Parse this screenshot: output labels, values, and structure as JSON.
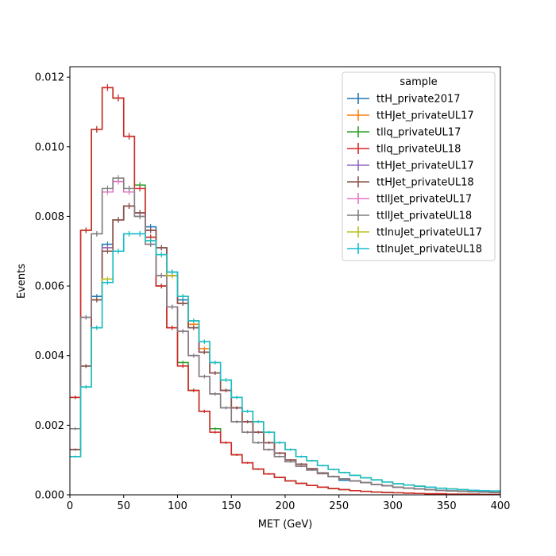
{
  "chart_data": {
    "type": "line",
    "style": "step-histogram-with-errorbars",
    "xlabel": "MET (GeV)",
    "ylabel": "Events",
    "xlim": [
      0,
      400
    ],
    "ylim": [
      0,
      0.0123
    ],
    "xticks": [
      0,
      50,
      100,
      150,
      200,
      250,
      300,
      350,
      400
    ],
    "xtick_labels": [
      "0",
      "50",
      "100",
      "150",
      "200",
      "250",
      "300",
      "350",
      "400"
    ],
    "yticks": [
      0,
      0.002,
      0.004,
      0.006,
      0.008,
      0.01,
      0.012
    ],
    "ytick_labels": [
      "0.000",
      "0.002",
      "0.004",
      "0.006",
      "0.008",
      "0.010",
      "0.012"
    ],
    "grid": false,
    "legend": {
      "title": "sample",
      "placement": "top-right"
    },
    "bin_edges": [
      0,
      10,
      20,
      30,
      40,
      50,
      60,
      70,
      80,
      90,
      100,
      110,
      120,
      130,
      140,
      150,
      160,
      170,
      180,
      190,
      200,
      210,
      220,
      230,
      240,
      250,
      260,
      270,
      280,
      290,
      300,
      310,
      320,
      330,
      340,
      350,
      360,
      370,
      380,
      390,
      400
    ],
    "series": [
      {
        "name": "ttH_private2017",
        "color": "#1f77b4",
        "values": [
          0.0013,
          0.0037,
          0.0057,
          0.0072,
          0.0079,
          0.0083,
          0.0081,
          0.0077,
          0.0071,
          0.0064,
          0.0056,
          0.0048,
          0.0041,
          0.0035,
          0.003,
          0.0025,
          0.0021,
          0.0018,
          0.0015,
          0.0012,
          0.001,
          0.00088,
          0.00075,
          0.00063,
          0.00053,
          0.00042,
          0.0004,
          0.00035,
          0.0003,
          0.00026,
          0.00022,
          0.00019,
          0.00017,
          0.00015,
          0.00013,
          0.00011,
          0.0001,
          9e-05,
          8e-05,
          7e-05
        ]
      },
      {
        "name": "ttHJet_privateUL17",
        "color": "#ff7f0e",
        "values": [
          0.0013,
          0.0037,
          0.0056,
          0.0071,
          0.0079,
          0.0083,
          0.0081,
          0.0076,
          0.0071,
          0.0063,
          0.0055,
          0.0049,
          0.0042,
          0.0035,
          0.003,
          0.0025,
          0.0021,
          0.0018,
          0.0015,
          0.0012,
          0.001,
          0.00088,
          0.00075,
          0.00063,
          0.00053,
          0.00046,
          0.0004,
          0.00035,
          0.0003,
          0.00026,
          0.00022,
          0.00019,
          0.00017,
          0.00015,
          0.00013,
          0.00011,
          0.0001,
          9e-05,
          8e-05,
          7e-05
        ]
      },
      {
        "name": "tllq_privateUL17",
        "color": "#2ca02c",
        "values": [
          0.0028,
          0.0076,
          0.0105,
          0.0117,
          0.0114,
          0.0103,
          0.0089,
          0.0074,
          0.006,
          0.0048,
          0.0038,
          0.003,
          0.0024,
          0.0019,
          0.0015,
          0.00115,
          0.00092,
          0.00074,
          0.0006,
          0.0005,
          0.0004,
          0.00033,
          0.00027,
          0.00022,
          0.00018,
          0.00015,
          0.00012,
          0.0001,
          8e-05,
          7e-05,
          6e-05,
          5e-05,
          4e-05,
          3e-05,
          3e-05,
          2e-05,
          2e-05,
          2e-05,
          1e-05,
          1e-05
        ]
      },
      {
        "name": "tllq_privateUL18",
        "color": "#d62728",
        "values": [
          0.0028,
          0.0076,
          0.0105,
          0.0117,
          0.0114,
          0.0103,
          0.0088,
          0.0074,
          0.006,
          0.0048,
          0.0037,
          0.003,
          0.0024,
          0.0018,
          0.0015,
          0.00115,
          0.00092,
          0.00074,
          0.0006,
          0.0005,
          0.0004,
          0.00033,
          0.00027,
          0.00022,
          0.00018,
          0.00015,
          0.00012,
          0.0001,
          8e-05,
          7e-05,
          6e-05,
          5e-05,
          4e-05,
          3e-05,
          3e-05,
          2e-05,
          2e-05,
          2e-05,
          1e-05,
          1e-05
        ]
      },
      {
        "name": "ttHJet_privateUL17",
        "color": "#9467bd",
        "values": [
          0.0013,
          0.0037,
          0.0056,
          0.0071,
          0.0079,
          0.0083,
          0.0081,
          0.0076,
          0.0071,
          0.0063,
          0.0055,
          0.0048,
          0.0041,
          0.0035,
          0.003,
          0.0025,
          0.0021,
          0.0018,
          0.0015,
          0.0012,
          0.001,
          0.00088,
          0.00075,
          0.00063,
          0.00053,
          0.00046,
          0.0004,
          0.00035,
          0.0003,
          0.00026,
          0.00022,
          0.00019,
          0.00017,
          0.00015,
          0.00013,
          0.00011,
          0.0001,
          9e-05,
          8e-05,
          7e-05
        ]
      },
      {
        "name": "ttHJet_privateUL18",
        "color": "#8c564b",
        "values": [
          0.0013,
          0.0037,
          0.0056,
          0.007,
          0.0079,
          0.0083,
          0.0081,
          0.0076,
          0.0071,
          0.0063,
          0.0055,
          0.0048,
          0.0041,
          0.0035,
          0.003,
          0.0025,
          0.0021,
          0.0018,
          0.0015,
          0.0012,
          0.001,
          0.00088,
          0.00075,
          0.00063,
          0.00053,
          0.00046,
          0.0004,
          0.00035,
          0.0003,
          0.00026,
          0.00022,
          0.00019,
          0.00017,
          0.00015,
          0.00013,
          0.00011,
          0.0001,
          9e-05,
          8e-05,
          7e-05
        ]
      },
      {
        "name": "ttllJet_privateUL17",
        "color": "#e377c2",
        "values": [
          0.0019,
          0.0051,
          0.0075,
          0.0087,
          0.009,
          0.0087,
          0.008,
          0.0072,
          0.0063,
          0.0054,
          0.0047,
          0.004,
          0.0034,
          0.0029,
          0.0025,
          0.0021,
          0.0018,
          0.0015,
          0.0013,
          0.0011,
          0.00095,
          0.00082,
          0.00071,
          0.00061,
          0.00052,
          0.00046,
          0.0004,
          0.00035,
          0.0003,
          0.00026,
          0.00022,
          0.00019,
          0.00017,
          0.00015,
          0.00013,
          0.00011,
          0.0001,
          9e-05,
          8e-05,
          7e-05
        ]
      },
      {
        "name": "ttllJet_privateUL18",
        "color": "#7f7f7f",
        "values": [
          0.0019,
          0.0051,
          0.0075,
          0.0088,
          0.0091,
          0.0088,
          0.008,
          0.0072,
          0.0063,
          0.0054,
          0.0047,
          0.004,
          0.0034,
          0.0029,
          0.0025,
          0.0021,
          0.0018,
          0.0015,
          0.0013,
          0.0011,
          0.00095,
          0.00082,
          0.00071,
          0.00061,
          0.00052,
          0.00046,
          0.0004,
          0.00035,
          0.0003,
          0.00026,
          0.00022,
          0.00019,
          0.00017,
          0.00015,
          0.00013,
          0.00011,
          0.0001,
          9e-05,
          8e-05,
          7e-05
        ]
      },
      {
        "name": "ttlnuJet_privateUL17",
        "color": "#bcbd22",
        "values": [
          0.0011,
          0.0031,
          0.0048,
          0.0062,
          0.007,
          0.0075,
          0.0075,
          0.0073,
          0.0069,
          0.0063,
          0.0057,
          0.005,
          0.0044,
          0.0038,
          0.0033,
          0.0028,
          0.0024,
          0.0021,
          0.0018,
          0.0015,
          0.0013,
          0.0011,
          0.00098,
          0.00084,
          0.00073,
          0.00064,
          0.00056,
          0.00049,
          0.00043,
          0.00037,
          0.00032,
          0.00028,
          0.00025,
          0.00022,
          0.00019,
          0.00017,
          0.00015,
          0.00013,
          0.00012,
          0.00011
        ]
      },
      {
        "name": "ttlnuJet_privateUL18",
        "color": "#17becf",
        "values": [
          0.0011,
          0.0031,
          0.0048,
          0.0061,
          0.007,
          0.0075,
          0.0075,
          0.0073,
          0.0069,
          0.0064,
          0.0057,
          0.005,
          0.0044,
          0.0038,
          0.0033,
          0.0028,
          0.0024,
          0.0021,
          0.0018,
          0.0015,
          0.0013,
          0.0011,
          0.00098,
          0.00084,
          0.00073,
          0.00064,
          0.00056,
          0.00049,
          0.00043,
          0.00037,
          0.00032,
          0.00028,
          0.00025,
          0.00022,
          0.00019,
          0.00017,
          0.00015,
          0.00013,
          0.00012,
          0.00011
        ]
      }
    ]
  }
}
